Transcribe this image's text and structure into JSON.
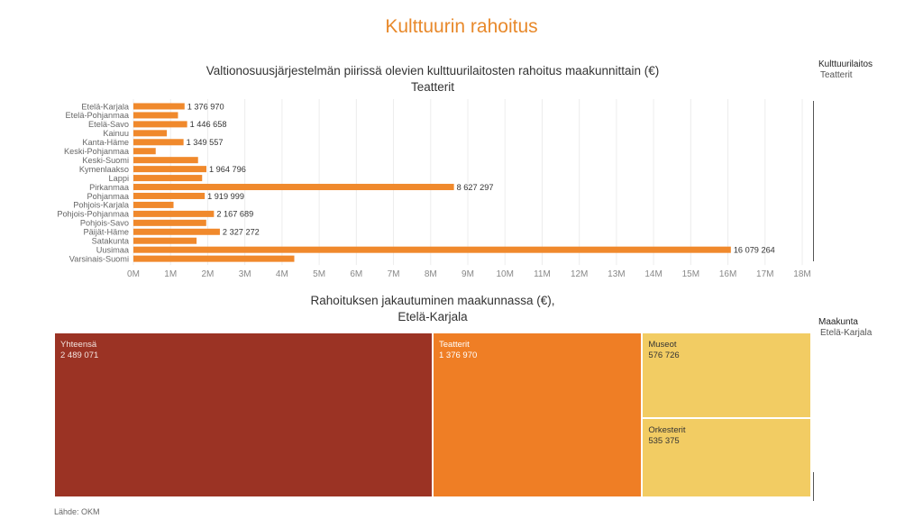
{
  "page": {
    "title": "Kulttuurin rahoitus",
    "source": "Lähde: OKM"
  },
  "bar_section": {
    "title_line1": "Valtionosuusjärjestelmän piirissä olevien kulttuurilaitosten rahoitus maakunnittain (€)",
    "title_line2": "Teatterit"
  },
  "treemap_section": {
    "title_line1": "Rahoituksen jakautuminen maakunnassa (€),",
    "title_line2": "Etelä-Karjala"
  },
  "filters": {
    "kulttuurilaitos": {
      "label": "Kulttuurilaitos",
      "value": "Teatterit"
    },
    "maakunta": {
      "label": "Maakunta",
      "value": "Etelä-Karjala"
    }
  },
  "colors": {
    "accent": "#e8892b",
    "bar": "#f0892c",
    "tile_total": "#9b3324",
    "tile_theatre": "#ef7e25",
    "tile_museums": "#f2cc63",
    "tile_orchestras": "#f2cc63"
  },
  "chart_data": [
    {
      "type": "bar",
      "orientation": "horizontal",
      "title": "Valtionosuusjärjestelmän piirissä olevien kulttuurilaitosten rahoitus maakunnittain (€)",
      "subtitle": "Teatterit",
      "categories": [
        "Etelä-Karjala",
        "Etelä-Pohjanmaa",
        "Etelä-Savo",
        "Kainuu",
        "Kanta-Häme",
        "Keski-Pohjanmaa",
        "Keski-Suomi",
        "Kymenlaakso",
        "Lappi",
        "Pirkanmaa",
        "Pohjanmaa",
        "Pohjois-Karjala",
        "Pohjois-Pohjanmaa",
        "Pohjois-Savo",
        "Päijät-Häme",
        "Satakunta",
        "Uusimaa",
        "Varsinais-Suomi"
      ],
      "values": [
        1376970,
        1200000,
        1446658,
        900000,
        1349557,
        600000,
        1740000,
        1964796,
        1850000,
        8627297,
        1919999,
        1080000,
        2167689,
        1960000,
        2327272,
        1700000,
        16079264,
        4330000
      ],
      "data_labels": [
        "1 376 970",
        "",
        "1 446 658",
        "",
        "1 349 557",
        "",
        "",
        "1 964 796",
        "",
        "8 627 297",
        "1 919 999",
        "",
        "2 167 689",
        "",
        "2 327 272",
        "",
        "16 079 264",
        ""
      ],
      "x_ticks": [
        "0M",
        "1M",
        "2M",
        "3M",
        "4M",
        "5M",
        "6M",
        "7M",
        "8M",
        "9M",
        "10M",
        "11M",
        "12M",
        "13M",
        "14M",
        "15M",
        "16M",
        "17M",
        "18M"
      ],
      "xlim": [
        0,
        18000000
      ],
      "grid": true
    },
    {
      "type": "treemap",
      "title": "Rahoituksen jakautuminen maakunnassa (€),",
      "subtitle": "Etelä-Karjala",
      "categories": [
        "Yhteensä",
        "Teatterit",
        "Museot",
        "Orkesterit"
      ],
      "values": [
        2489071,
        1376970,
        576726,
        535375
      ],
      "value_labels": [
        "2 489 071",
        "1 376 970",
        "576 726",
        "535 375"
      ]
    }
  ]
}
